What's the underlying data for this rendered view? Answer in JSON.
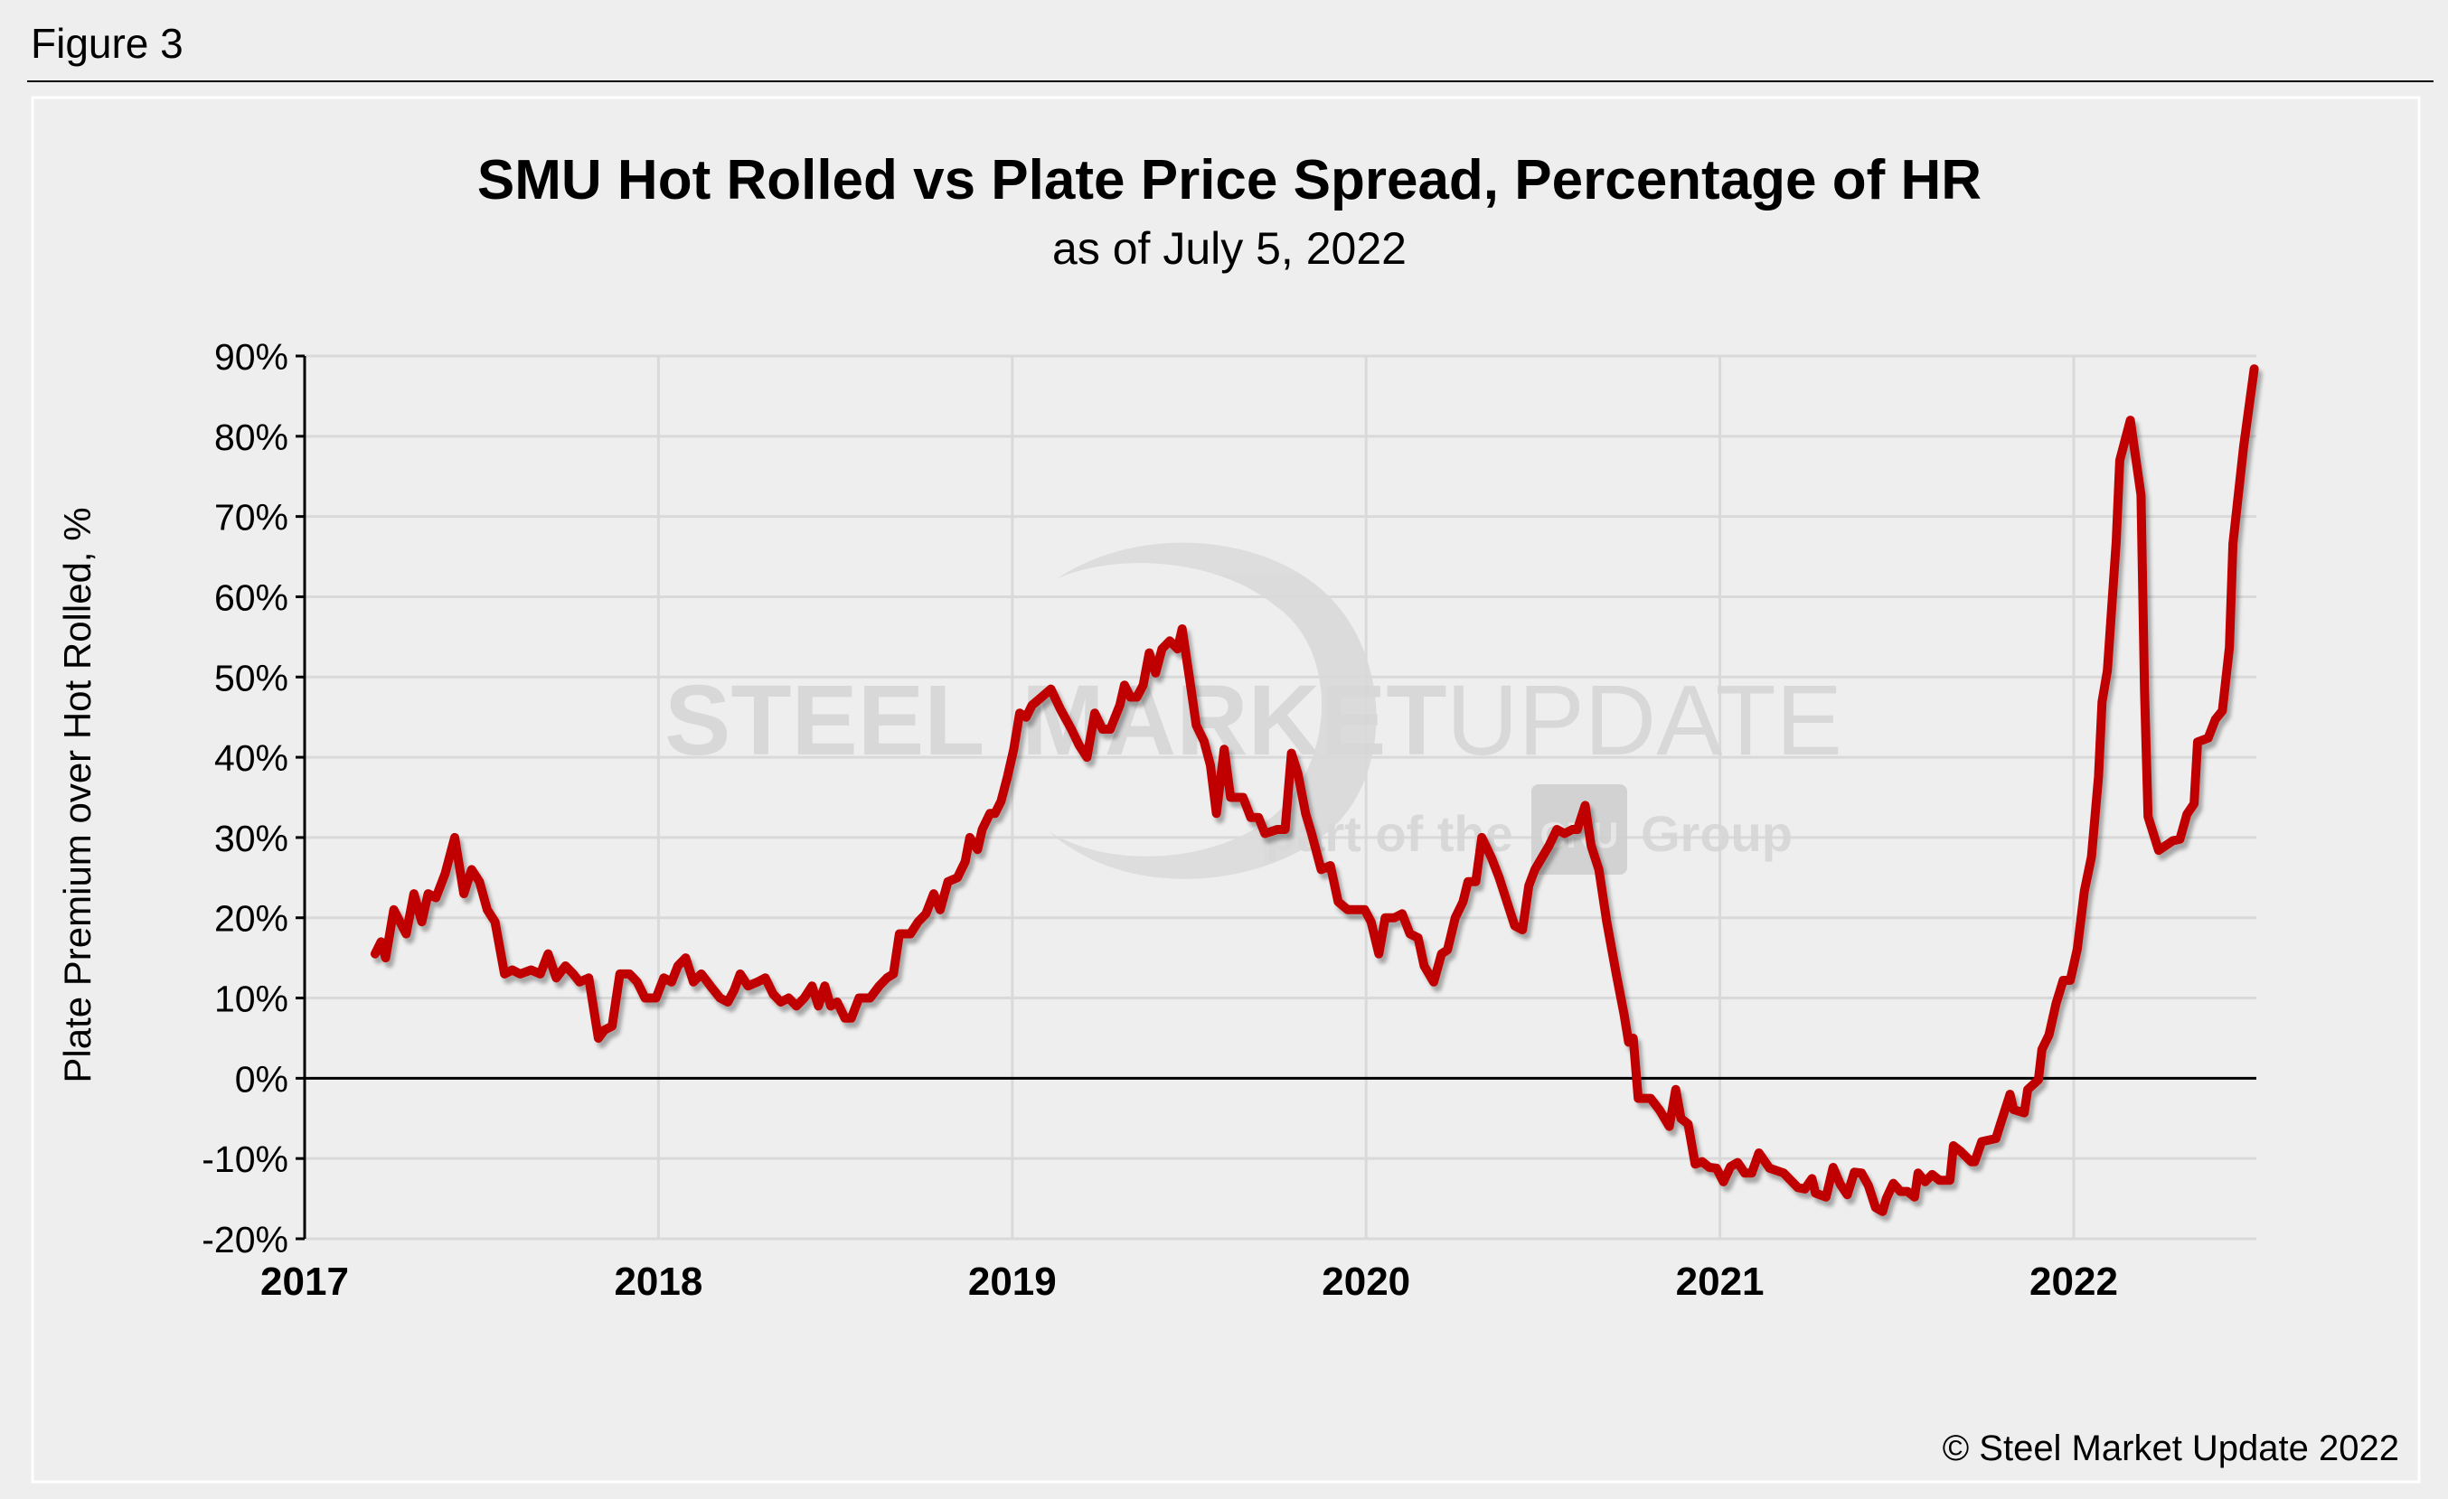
{
  "figure_label": "Figure 3",
  "copyright": "© Steel Market Update 2022",
  "watermark": {
    "word1": "STEEL",
    "word2": "MARKET",
    "word3": "UPDATE",
    "tagline_pre": "part of the",
    "brand": "CRU",
    "tagline_post": "Group"
  },
  "colors": {
    "line": "#C00000",
    "background": "#EEEEEE",
    "grid": "#D9D9D9",
    "watermark": "#D6D6D6"
  },
  "chart_data": {
    "type": "line",
    "title": "SMU Hot Rolled vs Plate Price Spread, Percentage of HR",
    "subtitle": "as of July 5, 2022",
    "xlabel": "",
    "ylabel": "Plate Premium over Hot Rolled, %",
    "ylim": [
      -20,
      90
    ],
    "xlim": [
      2017,
      2022.51
    ],
    "grid": true,
    "legend": "none",
    "y_ticks": [
      "-20%",
      "-10%",
      "0%",
      "10%",
      "20%",
      "30%",
      "40%",
      "50%",
      "60%",
      "70%",
      "80%",
      "90%"
    ],
    "y_tick_values": [
      -20,
      -10,
      0,
      10,
      20,
      30,
      40,
      50,
      60,
      70,
      80,
      90
    ],
    "x_ticks": [
      "2017",
      "2018",
      "2019",
      "2020",
      "2021",
      "2022"
    ],
    "x_tick_values": [
      2017,
      2018,
      2019,
      2020,
      2021,
      2022
    ],
    "series": [
      {
        "name": "Plate premium over HR",
        "points": [
          [
            2017.199,
            15.5
          ],
          [
            2017.216,
            17
          ],
          [
            2017.229,
            15
          ],
          [
            2017.252,
            21
          ],
          [
            2017.287,
            18
          ],
          [
            2017.309,
            23
          ],
          [
            2017.331,
            19.5
          ],
          [
            2017.349,
            23
          ],
          [
            2017.371,
            22.5
          ],
          [
            2017.397,
            25.5
          ],
          [
            2017.424,
            30
          ],
          [
            2017.45,
            23
          ],
          [
            2017.472,
            26
          ],
          [
            2017.494,
            24.5
          ],
          [
            2017.516,
            21
          ],
          [
            2017.538,
            19.5
          ],
          [
            2017.565,
            13
          ],
          [
            2017.587,
            13.5
          ],
          [
            2017.609,
            13
          ],
          [
            2017.64,
            13.5
          ],
          [
            2017.666,
            13
          ],
          [
            2017.688,
            15.5
          ],
          [
            2017.711,
            12.5
          ],
          [
            2017.737,
            14
          ],
          [
            2017.759,
            13
          ],
          [
            2017.777,
            12
          ],
          [
            2017.803,
            12.5
          ],
          [
            2017.83,
            5
          ],
          [
            2017.847,
            6
          ],
          [
            2017.869,
            6.5
          ],
          [
            2017.891,
            13
          ],
          [
            2017.918,
            13
          ],
          [
            2017.94,
            12
          ],
          [
            2017.962,
            10
          ],
          [
            2017.993,
            10
          ],
          [
            2018.015,
            12.5
          ],
          [
            2018.037,
            12
          ],
          [
            2018.055,
            14
          ],
          [
            2018.077,
            15
          ],
          [
            2018.099,
            12
          ],
          [
            2018.121,
            13
          ],
          [
            2018.147,
            11.5
          ],
          [
            2018.174,
            10
          ],
          [
            2018.196,
            9.5
          ],
          [
            2018.214,
            11
          ],
          [
            2018.231,
            13
          ],
          [
            2018.253,
            11.5
          ],
          [
            2018.28,
            12
          ],
          [
            2018.302,
            12.5
          ],
          [
            2018.324,
            10.5
          ],
          [
            2018.346,
            9.5
          ],
          [
            2018.368,
            10
          ],
          [
            2018.39,
            9
          ],
          [
            2018.412,
            10
          ],
          [
            2018.434,
            11.5
          ],
          [
            2018.452,
            9
          ],
          [
            2018.47,
            11.5
          ],
          [
            2018.487,
            9
          ],
          [
            2018.505,
            9.5
          ],
          [
            2018.527,
            7.5
          ],
          [
            2018.545,
            7.5
          ],
          [
            2018.567,
            10
          ],
          [
            2018.598,
            10
          ],
          [
            2018.624,
            11.5
          ],
          [
            2018.646,
            12.5
          ],
          [
            2018.664,
            13
          ],
          [
            2018.681,
            18
          ],
          [
            2018.712,
            18
          ],
          [
            2018.734,
            19.5
          ],
          [
            2018.756,
            20.5
          ],
          [
            2018.778,
            23
          ],
          [
            2018.796,
            21
          ],
          [
            2018.818,
            24.5
          ],
          [
            2018.845,
            25
          ],
          [
            2018.867,
            27
          ],
          [
            2018.88,
            30
          ],
          [
            2018.902,
            28.5
          ],
          [
            2018.915,
            31
          ],
          [
            2018.937,
            33
          ],
          [
            2018.951,
            33
          ],
          [
            2018.968,
            34.5
          ],
          [
            2018.986,
            37.5
          ],
          [
            2019.004,
            41
          ],
          [
            2019.021,
            45.5
          ],
          [
            2019.039,
            45
          ],
          [
            2019.056,
            46.5
          ],
          [
            2019.083,
            47.5
          ],
          [
            2019.109,
            48.5
          ],
          [
            2019.136,
            46
          ],
          [
            2019.167,
            43.5
          ],
          [
            2019.189,
            41.5
          ],
          [
            2019.211,
            40
          ],
          [
            2019.233,
            45.5
          ],
          [
            2019.255,
            43.5
          ],
          [
            2019.277,
            43.5
          ],
          [
            2019.304,
            46.5
          ],
          [
            2019.317,
            49
          ],
          [
            2019.334,
            47.5
          ],
          [
            2019.352,
            47.5
          ],
          [
            2019.37,
            49
          ],
          [
            2019.387,
            53
          ],
          [
            2019.405,
            50.5
          ],
          [
            2019.423,
            53.5
          ],
          [
            2019.445,
            54.5
          ],
          [
            2019.467,
            53.5
          ],
          [
            2019.48,
            56
          ],
          [
            2019.502,
            49.5
          ],
          [
            2019.52,
            44
          ],
          [
            2019.542,
            42
          ],
          [
            2019.56,
            39
          ],
          [
            2019.577,
            33
          ],
          [
            2019.599,
            41
          ],
          [
            2019.617,
            35
          ],
          [
            2019.652,
            35
          ],
          [
            2019.674,
            32.5
          ],
          [
            2019.696,
            32.5
          ],
          [
            2019.714,
            30.5
          ],
          [
            2019.749,
            31
          ],
          [
            2019.771,
            31
          ],
          [
            2019.789,
            40.5
          ],
          [
            2019.807,
            38
          ],
          [
            2019.829,
            33
          ],
          [
            2019.846,
            30.5
          ],
          [
            2019.873,
            26
          ],
          [
            2019.899,
            26.5
          ],
          [
            2019.921,
            22
          ],
          [
            2019.948,
            21
          ],
          [
            2019.996,
            21
          ],
          [
            2020.014,
            19.5
          ],
          [
            2020.036,
            15.5
          ],
          [
            2020.054,
            20
          ],
          [
            2020.08,
            20
          ],
          [
            2020.102,
            20.5
          ],
          [
            2020.124,
            18
          ],
          [
            2020.147,
            17.5
          ],
          [
            2020.164,
            14
          ],
          [
            2020.191,
            12
          ],
          [
            2020.213,
            15.5
          ],
          [
            2020.23,
            16
          ],
          [
            2020.252,
            20
          ],
          [
            2020.274,
            22
          ],
          [
            2020.288,
            24.5
          ],
          [
            2020.31,
            24.5
          ],
          [
            2020.327,
            30
          ],
          [
            2020.354,
            27.5
          ],
          [
            2020.376,
            25
          ],
          [
            2020.398,
            22
          ],
          [
            2020.42,
            19
          ],
          [
            2020.442,
            18.5
          ],
          [
            2020.46,
            24
          ],
          [
            2020.477,
            26
          ],
          [
            2020.517,
            29
          ],
          [
            2020.539,
            31
          ],
          [
            2020.561,
            30.5
          ],
          [
            2020.583,
            31
          ],
          [
            2020.597,
            31
          ],
          [
            2020.619,
            34
          ],
          [
            2020.636,
            29
          ],
          [
            2020.658,
            26
          ],
          [
            2020.68,
            19.5
          ],
          [
            2020.707,
            13
          ],
          [
            2020.729,
            8
          ],
          [
            2020.742,
            4.5
          ],
          [
            2020.755,
            5
          ],
          [
            2020.769,
            -2.5
          ],
          [
            2020.804,
            -2.5
          ],
          [
            2020.83,
            -4
          ],
          [
            2020.857,
            -6
          ],
          [
            2020.875,
            -1.4
          ],
          [
            2020.89,
            -5
          ],
          [
            2020.91,
            -5.7
          ],
          [
            2020.93,
            -10.7
          ],
          [
            2020.95,
            -10.4
          ],
          [
            2020.97,
            -11.1
          ],
          [
            2020.99,
            -11.2
          ],
          [
            2021.01,
            -12.9
          ],
          [
            2021.03,
            -11
          ],
          [
            2021.05,
            -10.5
          ],
          [
            2021.07,
            -11.8
          ],
          [
            2021.09,
            -11.8
          ],
          [
            2021.11,
            -9.3
          ],
          [
            2021.14,
            -11.2
          ],
          [
            2021.18,
            -11.8
          ],
          [
            2021.22,
            -13.6
          ],
          [
            2021.24,
            -13.8
          ],
          [
            2021.26,
            -12.5
          ],
          [
            2021.27,
            -14.3
          ],
          [
            2021.3,
            -14.8
          ],
          [
            2021.32,
            -11.1
          ],
          [
            2021.34,
            -13.2
          ],
          [
            2021.36,
            -14.5
          ],
          [
            2021.38,
            -11.7
          ],
          [
            2021.4,
            -11.8
          ],
          [
            2021.42,
            -13.4
          ],
          [
            2021.44,
            -16.1
          ],
          [
            2021.46,
            -16.6
          ],
          [
            2021.47,
            -15
          ],
          [
            2021.49,
            -13.1
          ],
          [
            2021.51,
            -14.1
          ],
          [
            2021.53,
            -14.1
          ],
          [
            2021.55,
            -14.8
          ],
          [
            2021.56,
            -11.8
          ],
          [
            2021.58,
            -12.9
          ],
          [
            2021.6,
            -12
          ],
          [
            2021.62,
            -12.7
          ],
          [
            2021.65,
            -12.7
          ],
          [
            2021.66,
            -8.4
          ],
          [
            2021.68,
            -9.1
          ],
          [
            2021.71,
            -10.4
          ],
          [
            2021.72,
            -10.4
          ],
          [
            2021.74,
            -7.9
          ],
          [
            2021.78,
            -7.5
          ],
          [
            2021.79,
            -6.1
          ],
          [
            2021.82,
            -2
          ],
          [
            2021.83,
            -3.9
          ],
          [
            2021.86,
            -4.3
          ],
          [
            2021.87,
            -1.4
          ],
          [
            2021.9,
            -0.2
          ],
          [
            2021.91,
            3.6
          ],
          [
            2021.93,
            5.4
          ],
          [
            2021.95,
            9.3
          ],
          [
            2021.97,
            12.2
          ],
          [
            2021.99,
            12.2
          ],
          [
            2022.01,
            16.1
          ],
          [
            2022.03,
            23.3
          ],
          [
            2022.05,
            27.6
          ],
          [
            2022.07,
            37.6
          ],
          [
            2022.08,
            46.9
          ],
          [
            2022.095,
            50.8
          ],
          [
            2022.12,
            66.9
          ],
          [
            2022.13,
            77
          ],
          [
            2022.16,
            82
          ],
          [
            2022.19,
            72.7
          ],
          [
            2022.2,
            48.3
          ],
          [
            2022.21,
            32.6
          ],
          [
            2022.24,
            28.4
          ],
          [
            2022.28,
            29.6
          ],
          [
            2022.3,
            29.8
          ],
          [
            2022.32,
            32.9
          ],
          [
            2022.34,
            34.2
          ],
          [
            2022.35,
            41.9
          ],
          [
            2022.38,
            42.4
          ],
          [
            2022.4,
            44.7
          ],
          [
            2022.42,
            45.8
          ],
          [
            2022.44,
            53.7
          ],
          [
            2022.45,
            66.6
          ],
          [
            2022.48,
            78.7
          ],
          [
            2022.51,
            88.4
          ]
        ]
      }
    ]
  }
}
